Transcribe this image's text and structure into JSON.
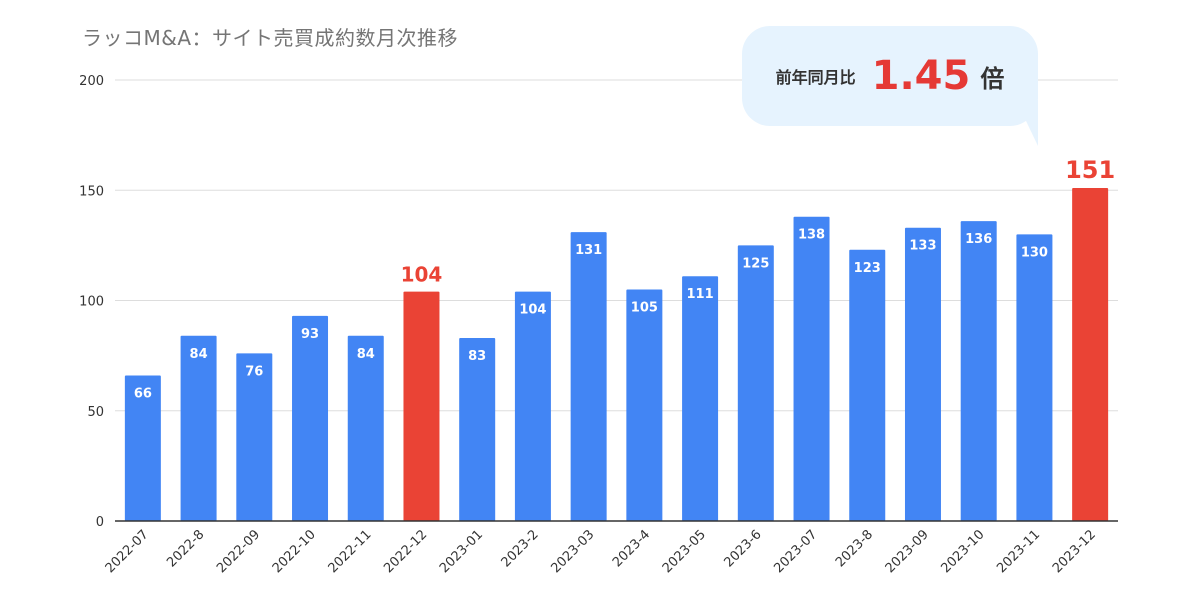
{
  "chart_data": {
    "type": "bar",
    "title": "ラッコM&A：サイト売買成約数月次推移",
    "categories": [
      "2022-07",
      "2022-8",
      "2022-09",
      "2022-10",
      "2022-11",
      "2022-12",
      "2023-01",
      "2023-2",
      "2023-03",
      "2023-4",
      "2023-05",
      "2023-6",
      "2023-07",
      "2023-8",
      "2023-09",
      "2023-10",
      "2023-11",
      "2023-12"
    ],
    "values": [
      66,
      84,
      76,
      93,
      84,
      104,
      83,
      104,
      131,
      105,
      111,
      125,
      138,
      123,
      133,
      136,
      130,
      151
    ],
    "highlighted_categories": [
      "2022-12",
      "2023-12"
    ],
    "yticks": [
      0,
      50,
      100,
      150,
      200
    ],
    "ylim": [
      0,
      200
    ],
    "grid": true,
    "xlabel": "",
    "ylabel": ""
  },
  "colors": {
    "bar": "#4285f4",
    "highlight": "#ea4335",
    "title": "#757575",
    "grid": "#dddddd",
    "axis": "#333333",
    "callout_bg": "#e6f3fe",
    "value_red": "#e53935"
  },
  "callout": {
    "label": "前年同月比",
    "value": "1.45",
    "unit": "倍"
  }
}
